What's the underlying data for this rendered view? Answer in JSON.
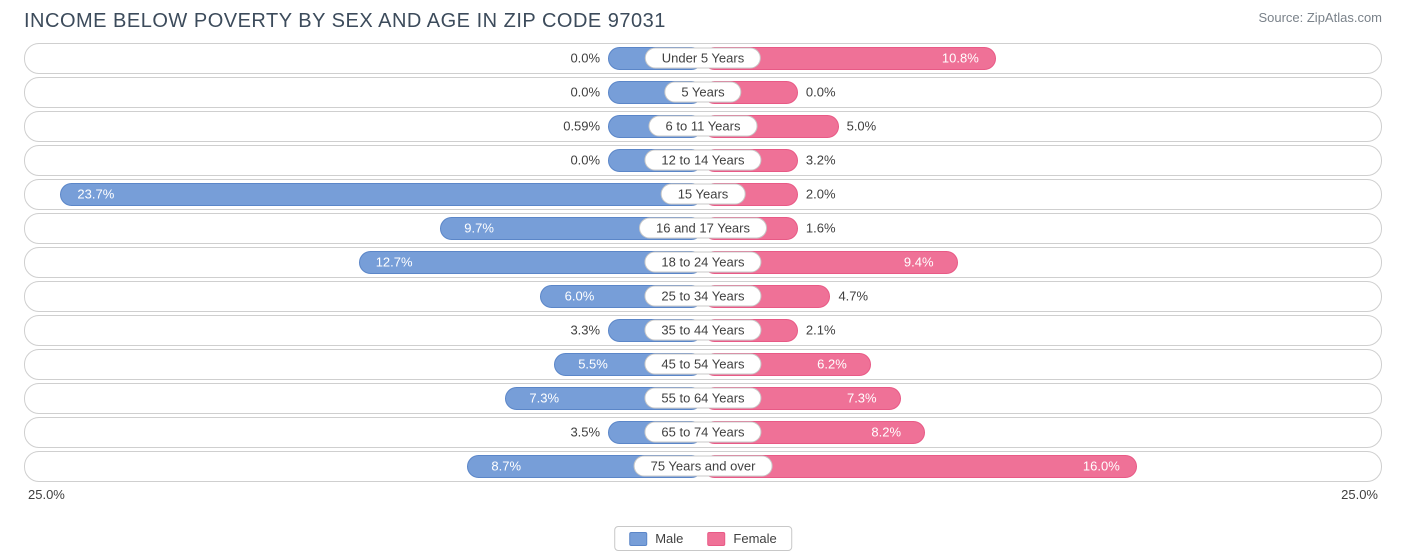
{
  "title": "INCOME BELOW POVERTY BY SEX AND AGE IN ZIP CODE 97031",
  "source": "Source: ZipAtlas.com",
  "chart": {
    "type": "diverging-bar",
    "max": 25.0,
    "axis_left": "25.0%",
    "axis_right": "25.0%",
    "male": {
      "fill": "#779ed8",
      "border": "#5b86c8",
      "label": "Male"
    },
    "female": {
      "fill": "#ef7197",
      "border": "#e85a86",
      "label": "Female"
    },
    "track_border": "#cfcfcf",
    "background": "#ffffff",
    "rows": [
      {
        "category": "Under 5 Years",
        "male": 0.0,
        "male_label": "0.0%",
        "female": 10.8,
        "female_label": "10.8%"
      },
      {
        "category": "5 Years",
        "male": 0.0,
        "male_label": "0.0%",
        "female": 0.0,
        "female_label": "0.0%"
      },
      {
        "category": "6 to 11 Years",
        "male": 0.59,
        "male_label": "0.59%",
        "female": 5.0,
        "female_label": "5.0%"
      },
      {
        "category": "12 to 14 Years",
        "male": 0.0,
        "male_label": "0.0%",
        "female": 3.2,
        "female_label": "3.2%"
      },
      {
        "category": "15 Years",
        "male": 23.7,
        "male_label": "23.7%",
        "female": 2.0,
        "female_label": "2.0%"
      },
      {
        "category": "16 and 17 Years",
        "male": 9.7,
        "male_label": "9.7%",
        "female": 1.6,
        "female_label": "1.6%"
      },
      {
        "category": "18 to 24 Years",
        "male": 12.7,
        "male_label": "12.7%",
        "female": 9.4,
        "female_label": "9.4%"
      },
      {
        "category": "25 to 34 Years",
        "male": 6.0,
        "male_label": "6.0%",
        "female": 4.7,
        "female_label": "4.7%"
      },
      {
        "category": "35 to 44 Years",
        "male": 3.3,
        "male_label": "3.3%",
        "female": 2.1,
        "female_label": "2.1%"
      },
      {
        "category": "45 to 54 Years",
        "male": 5.5,
        "male_label": "5.5%",
        "female": 6.2,
        "female_label": "6.2%"
      },
      {
        "category": "55 to 64 Years",
        "male": 7.3,
        "male_label": "7.3%",
        "female": 7.3,
        "female_label": "7.3%"
      },
      {
        "category": "65 to 74 Years",
        "male": 3.5,
        "male_label": "3.5%",
        "female": 8.2,
        "female_label": "8.2%"
      },
      {
        "category": "75 Years and over",
        "male": 8.7,
        "male_label": "8.7%",
        "female": 16.0,
        "female_label": "16.0%"
      }
    ]
  }
}
